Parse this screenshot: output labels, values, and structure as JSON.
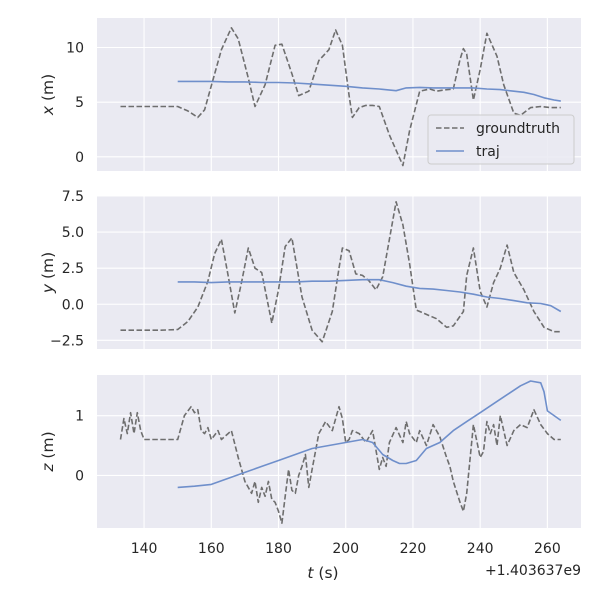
{
  "colors": {
    "panel_bg": "#EAEAF2",
    "grid": "#FFFFFF",
    "groundtruth": "#6E6E6E",
    "traj": "#6F8FCB",
    "legend_bg": "#EAEAF2",
    "legend_border": "#CCCCCC"
  },
  "chart_data": [
    {
      "type": "line",
      "xlabel": "",
      "ylabel_var": "x",
      "ylabel_unit": " (m)",
      "xlim": [
        126,
        270
      ],
      "ylim": [
        -1.3,
        12.7
      ],
      "yticks": [
        0,
        5,
        10
      ],
      "ytick_labels": [
        "0",
        "5",
        "10"
      ],
      "legend": "lower-right",
      "grid": true,
      "series": [
        {
          "name": "groundtruth",
          "style": "dashed",
          "x": [
            133,
            140,
            145,
            150,
            153,
            156,
            158,
            160,
            163,
            166,
            168,
            171,
            173,
            176,
            179,
            181,
            184,
            186,
            189,
            192,
            195,
            197,
            199,
            201,
            202,
            204,
            206,
            208,
            210,
            213,
            215,
            217,
            219,
            222,
            225,
            227,
            229,
            232,
            234,
            235,
            236,
            238,
            240,
            242,
            245,
            247,
            250,
            252,
            255,
            258,
            261,
            264
          ],
          "y": [
            4.6,
            4.6,
            4.6,
            4.6,
            4.2,
            3.6,
            4.3,
            6.5,
            9.8,
            11.8,
            10.8,
            7.2,
            4.6,
            6.6,
            10.2,
            10.3,
            7.6,
            5.6,
            6.0,
            8.8,
            9.8,
            11.6,
            10.2,
            5.6,
            3.6,
            4.5,
            4.7,
            4.7,
            4.6,
            2.0,
            0.6,
            -0.8,
            2.4,
            6.0,
            6.2,
            6.0,
            6.1,
            6.2,
            8.9,
            9.9,
            9.4,
            5.2,
            8.0,
            11.3,
            9.2,
            6.6,
            4.0,
            3.8,
            4.5,
            4.6,
            4.5,
            4.5
          ]
        },
        {
          "name": "traj",
          "style": "solid",
          "x": [
            150,
            155,
            160,
            165,
            170,
            175,
            180,
            185,
            190,
            195,
            200,
            205,
            210,
            215,
            218,
            222,
            226,
            230,
            234,
            238,
            242,
            246,
            250,
            253,
            256,
            259,
            262,
            264
          ],
          "y": [
            6.9,
            6.9,
            6.9,
            6.85,
            6.85,
            6.8,
            6.8,
            6.75,
            6.65,
            6.55,
            6.45,
            6.3,
            6.2,
            6.05,
            6.3,
            6.35,
            6.3,
            6.3,
            6.3,
            6.3,
            6.2,
            6.15,
            6.0,
            5.9,
            5.7,
            5.4,
            5.2,
            5.1
          ]
        }
      ]
    },
    {
      "type": "line",
      "xlabel": "",
      "ylabel_var": "y",
      "ylabel_unit": " (m)",
      "xlim": [
        126,
        270
      ],
      "ylim": [
        -3.1,
        7.5
      ],
      "yticks": [
        -2.5,
        0.0,
        2.5,
        5.0,
        7.5
      ],
      "ytick_labels": [
        "−2.5",
        "0.0",
        "2.5",
        "5.0",
        "7.5"
      ],
      "grid": true,
      "series": [
        {
          "name": "groundtruth",
          "style": "dashed",
          "x": [
            133,
            140,
            145,
            150,
            153,
            156,
            159,
            161,
            163,
            165,
            167,
            169,
            171,
            173,
            175,
            178,
            180,
            182,
            184,
            187,
            190,
            193,
            196,
            198,
            199,
            201,
            203,
            205,
            207,
            209,
            211,
            213,
            215,
            217,
            219,
            221,
            224,
            227,
            230,
            232,
            235,
            236,
            238,
            240,
            242,
            244,
            246,
            248,
            250,
            253,
            256,
            259,
            262,
            264
          ],
          "y": [
            -1.8,
            -1.8,
            -1.8,
            -1.75,
            -1.2,
            -0.2,
            1.6,
            3.5,
            4.5,
            2.0,
            -0.6,
            1.5,
            3.9,
            2.5,
            2.2,
            -1.3,
            1.0,
            4.0,
            4.6,
            0.5,
            -1.8,
            -2.6,
            -0.5,
            2.5,
            3.9,
            3.7,
            2.1,
            2.0,
            1.6,
            1.0,
            1.9,
            4.5,
            7.1,
            5.5,
            2.8,
            -0.4,
            -0.7,
            -1.0,
            -1.6,
            -1.5,
            -0.5,
            2.0,
            3.9,
            0.9,
            -0.2,
            1.5,
            2.5,
            4.1,
            2.2,
            1.0,
            -0.5,
            -1.6,
            -1.9,
            -1.9
          ]
        },
        {
          "name": "traj",
          "style": "solid",
          "x": [
            150,
            155,
            160,
            165,
            170,
            175,
            180,
            185,
            190,
            195,
            200,
            205,
            210,
            214,
            218,
            222,
            226,
            230,
            234,
            238,
            242,
            246,
            250,
            254,
            258,
            261,
            264
          ],
          "y": [
            1.55,
            1.55,
            1.5,
            1.55,
            1.55,
            1.55,
            1.55,
            1.55,
            1.6,
            1.6,
            1.65,
            1.7,
            1.7,
            1.5,
            1.25,
            1.1,
            1.05,
            0.95,
            0.85,
            0.7,
            0.5,
            0.4,
            0.25,
            0.1,
            0.05,
            -0.1,
            -0.5
          ]
        }
      ]
    },
    {
      "type": "line",
      "xlabel_var": "t",
      "xlabel_unit": " (s)",
      "ylabel_var": "z",
      "ylabel_unit": " (m)",
      "xlim": [
        126,
        270
      ],
      "ylim": [
        -0.88,
        1.68
      ],
      "xticks": [
        140,
        160,
        180,
        200,
        220,
        240,
        260
      ],
      "xtick_labels": [
        "140",
        "160",
        "180",
        "200",
        "220",
        "240",
        "260"
      ],
      "yticks": [
        0,
        1
      ],
      "ytick_labels": [
        "0",
        "1"
      ],
      "offset_text": "+1.403637e9",
      "grid": true,
      "series": [
        {
          "name": "groundtruth",
          "style": "dashed",
          "x": [
            133,
            134,
            135,
            136,
            137,
            138,
            139,
            140,
            145,
            150,
            152,
            154,
            155,
            156,
            157,
            158,
            159,
            160,
            162,
            163,
            165,
            166,
            168,
            170,
            172,
            173,
            174,
            175,
            176,
            177,
            178,
            179,
            180,
            181,
            182,
            183,
            184,
            185,
            186,
            187,
            188,
            189,
            190,
            192,
            194,
            196,
            198,
            199,
            200,
            201,
            202,
            204,
            206,
            208,
            210,
            211,
            212,
            213,
            215,
            217,
            218,
            219,
            221,
            222,
            224,
            226,
            228,
            230,
            231,
            232,
            234,
            235,
            236,
            238,
            240,
            241,
            242,
            243,
            244,
            245,
            246,
            248,
            250,
            252,
            254,
            256,
            258,
            260,
            262,
            264
          ],
          "y": [
            0.6,
            0.95,
            0.7,
            1.05,
            0.7,
            1.05,
            0.75,
            0.6,
            0.6,
            0.6,
            1.0,
            1.15,
            1.05,
            1.1,
            0.75,
            0.7,
            0.8,
            0.6,
            0.75,
            0.6,
            0.7,
            0.75,
            0.3,
            -0.1,
            -0.3,
            -0.1,
            -0.45,
            -0.2,
            -0.35,
            -0.1,
            -0.4,
            -0.45,
            -0.6,
            -0.8,
            -0.35,
            0.1,
            -0.25,
            -0.3,
            0.0,
            0.15,
            0.35,
            -0.2,
            0.1,
            0.7,
            0.9,
            0.75,
            1.15,
            0.95,
            0.55,
            0.6,
            0.75,
            0.7,
            0.55,
            0.75,
            0.1,
            0.3,
            0.15,
            0.55,
            0.8,
            0.55,
            0.9,
            0.7,
            0.55,
            0.75,
            0.5,
            0.85,
            0.65,
            0.3,
            0.15,
            -0.1,
            -0.45,
            -0.6,
            -0.3,
            0.85,
            0.3,
            0.4,
            0.9,
            0.7,
            0.85,
            0.5,
            1.0,
            0.5,
            0.75,
            0.85,
            0.8,
            1.1,
            0.85,
            0.7,
            0.6,
            0.6
          ]
        },
        {
          "name": "traj",
          "style": "solid",
          "x": [
            150,
            155,
            160,
            165,
            170,
            175,
            180,
            185,
            190,
            195,
            200,
            205,
            208,
            211,
            214,
            216,
            218,
            221,
            224,
            228,
            232,
            236,
            240,
            244,
            248,
            252,
            255,
            258,
            259,
            260,
            262,
            264
          ],
          "y": [
            -0.2,
            -0.18,
            -0.15,
            -0.05,
            0.05,
            0.15,
            0.25,
            0.35,
            0.45,
            0.5,
            0.55,
            0.6,
            0.55,
            0.35,
            0.25,
            0.2,
            0.2,
            0.25,
            0.45,
            0.55,
            0.75,
            0.9,
            1.05,
            1.2,
            1.35,
            1.5,
            1.58,
            1.55,
            1.4,
            1.08,
            1.0,
            0.92
          ]
        }
      ]
    }
  ]
}
